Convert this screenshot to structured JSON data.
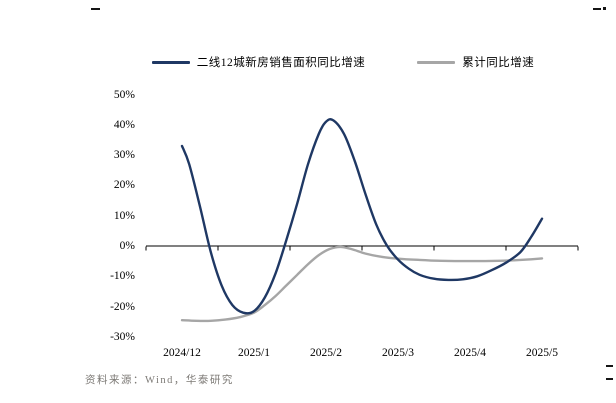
{
  "page": {
    "source_note": "资料来源：Wind，华泰研究"
  },
  "chart_data": {
    "type": "line",
    "title": "",
    "xlabel": "",
    "ylabel": "",
    "ylim": [
      -30,
      50
    ],
    "y_tick_step": 10,
    "grid": false,
    "legend_position": "top",
    "x_tick_labels": [
      "2024/12",
      "2025/1",
      "2025/2",
      "2025/3",
      "2025/4",
      "2025/5"
    ],
    "y_tick_labels": [
      "50%",
      "40%",
      "30%",
      "20%",
      "10%",
      "0%",
      "-10%",
      "-20%",
      "-30%"
    ],
    "points_format": "[month_index where 0 = 2024/12 and 5 = 2025/5, percent_value]",
    "series": [
      {
        "name": "二线12城新房销售面积同比增速",
        "color": "#1F3864",
        "points": [
          [
            0.0,
            33
          ],
          [
            0.1,
            27
          ],
          [
            0.25,
            13
          ],
          [
            0.4,
            -2
          ],
          [
            0.55,
            -13
          ],
          [
            0.7,
            -19.5
          ],
          [
            0.85,
            -22
          ],
          [
            1.0,
            -21.5
          ],
          [
            1.15,
            -17
          ],
          [
            1.3,
            -9
          ],
          [
            1.45,
            2
          ],
          [
            1.6,
            14
          ],
          [
            1.75,
            27
          ],
          [
            1.9,
            37
          ],
          [
            2.0,
            41
          ],
          [
            2.1,
            41.5
          ],
          [
            2.25,
            37
          ],
          [
            2.4,
            28
          ],
          [
            2.55,
            17
          ],
          [
            2.7,
            7
          ],
          [
            2.85,
            0
          ],
          [
            3.0,
            -4.5
          ],
          [
            3.15,
            -7.5
          ],
          [
            3.3,
            -9.5
          ],
          [
            3.5,
            -10.8
          ],
          [
            3.7,
            -11.2
          ],
          [
            3.9,
            -11
          ],
          [
            4.1,
            -10
          ],
          [
            4.3,
            -8
          ],
          [
            4.5,
            -5.5
          ],
          [
            4.7,
            -2
          ],
          [
            4.85,
            3
          ],
          [
            5.0,
            9
          ]
        ]
      },
      {
        "name": "累计同比增速",
        "color": "#A6A6A6",
        "points": [
          [
            0.0,
            -24.5
          ],
          [
            0.2,
            -24.7
          ],
          [
            0.4,
            -24.7
          ],
          [
            0.6,
            -24.3
          ],
          [
            0.8,
            -23.5
          ],
          [
            1.0,
            -22
          ],
          [
            1.15,
            -19.5
          ],
          [
            1.3,
            -16.5
          ],
          [
            1.45,
            -13
          ],
          [
            1.6,
            -9.5
          ],
          [
            1.75,
            -6
          ],
          [
            1.9,
            -3
          ],
          [
            2.05,
            -1
          ],
          [
            2.2,
            -0.3
          ],
          [
            2.35,
            -1
          ],
          [
            2.55,
            -2.5
          ],
          [
            2.75,
            -3.5
          ],
          [
            3.0,
            -4.2
          ],
          [
            3.3,
            -4.6
          ],
          [
            3.6,
            -4.9
          ],
          [
            4.0,
            -5
          ],
          [
            4.4,
            -4.9
          ],
          [
            4.7,
            -4.6
          ],
          [
            5.0,
            -4.1
          ]
        ]
      }
    ]
  }
}
